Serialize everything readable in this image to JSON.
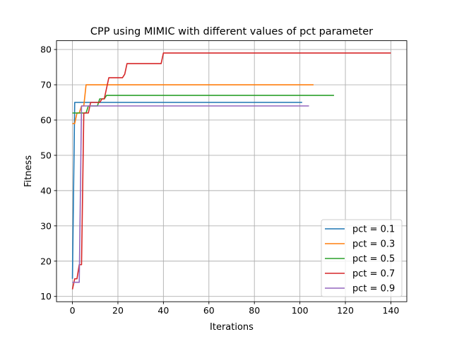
{
  "chart_data": {
    "type": "line",
    "title": "CPP using MIMIC with different values of pct parameter",
    "xlabel": "Iterations",
    "ylabel": "Fitness",
    "xlim": [
      -7,
      147
    ],
    "ylim": [
      8.5,
      82.5
    ],
    "x_ticks": [
      0,
      20,
      40,
      60,
      80,
      100,
      120,
      140
    ],
    "y_ticks": [
      10,
      20,
      30,
      40,
      50,
      60,
      70,
      80
    ],
    "grid": true,
    "legend_position": "lower right",
    "series": [
      {
        "name": "pct = 0.1",
        "color": "#1f77b4",
        "points": [
          [
            0,
            15
          ],
          [
            1,
            65
          ],
          [
            101,
            65
          ]
        ]
      },
      {
        "name": "pct = 0.3",
        "color": "#ff7f0e",
        "points": [
          [
            0,
            59
          ],
          [
            1,
            59
          ],
          [
            2,
            62
          ],
          [
            3,
            62
          ],
          [
            4,
            64
          ],
          [
            5,
            64
          ],
          [
            6,
            70
          ],
          [
            106,
            70
          ]
        ]
      },
      {
        "name": "pct = 0.5",
        "color": "#2ca02c",
        "points": [
          [
            0,
            62
          ],
          [
            6,
            62
          ],
          [
            7,
            64
          ],
          [
            11,
            64
          ],
          [
            12,
            66
          ],
          [
            14,
            66
          ],
          [
            15,
            67
          ],
          [
            115,
            67
          ]
        ]
      },
      {
        "name": "pct = 0.7",
        "color": "#d62728",
        "points": [
          [
            0,
            12
          ],
          [
            1,
            15
          ],
          [
            2,
            15
          ],
          [
            3,
            19
          ],
          [
            4,
            19
          ],
          [
            5,
            62
          ],
          [
            7,
            62
          ],
          [
            8,
            65
          ],
          [
            12,
            65
          ],
          [
            13,
            66
          ],
          [
            14,
            66
          ],
          [
            16,
            72
          ],
          [
            22,
            72
          ],
          [
            23,
            73
          ],
          [
            24,
            76
          ],
          [
            39,
            76
          ],
          [
            40,
            79
          ],
          [
            140,
            79
          ]
        ]
      },
      {
        "name": "pct = 0.9",
        "color": "#9467bd",
        "points": [
          [
            0,
            14
          ],
          [
            3,
            14
          ],
          [
            4,
            64
          ],
          [
            104,
            64
          ]
        ]
      }
    ]
  }
}
